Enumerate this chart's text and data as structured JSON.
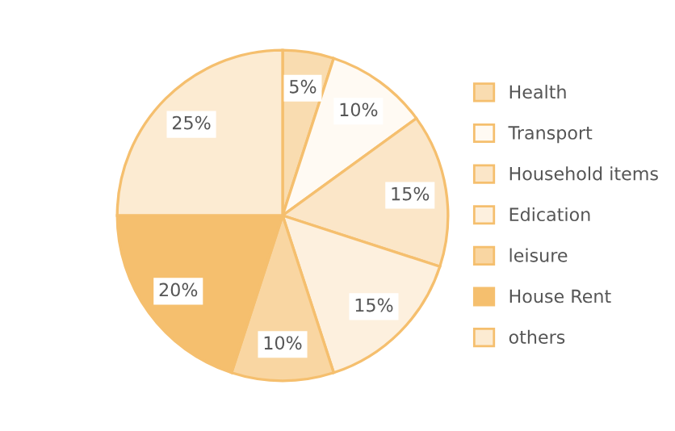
{
  "chart_data": {
    "type": "pie",
    "categories": [
      "Health",
      "Transport",
      "Household items",
      "Edication",
      "leisure",
      "House Rent",
      "others"
    ],
    "values": [
      5,
      10,
      15,
      15,
      10,
      20,
      25
    ],
    "value_labels": [
      "5%",
      "10%",
      "15%",
      "15%",
      "10%",
      "20%",
      "25%"
    ],
    "colors": [
      "#f9dcb0",
      "#fffaf3",
      "#fbe6c8",
      "#fdf0de",
      "#f9d6a2",
      "#f5bf6e",
      "#fcebd2"
    ],
    "legend": "right"
  }
}
